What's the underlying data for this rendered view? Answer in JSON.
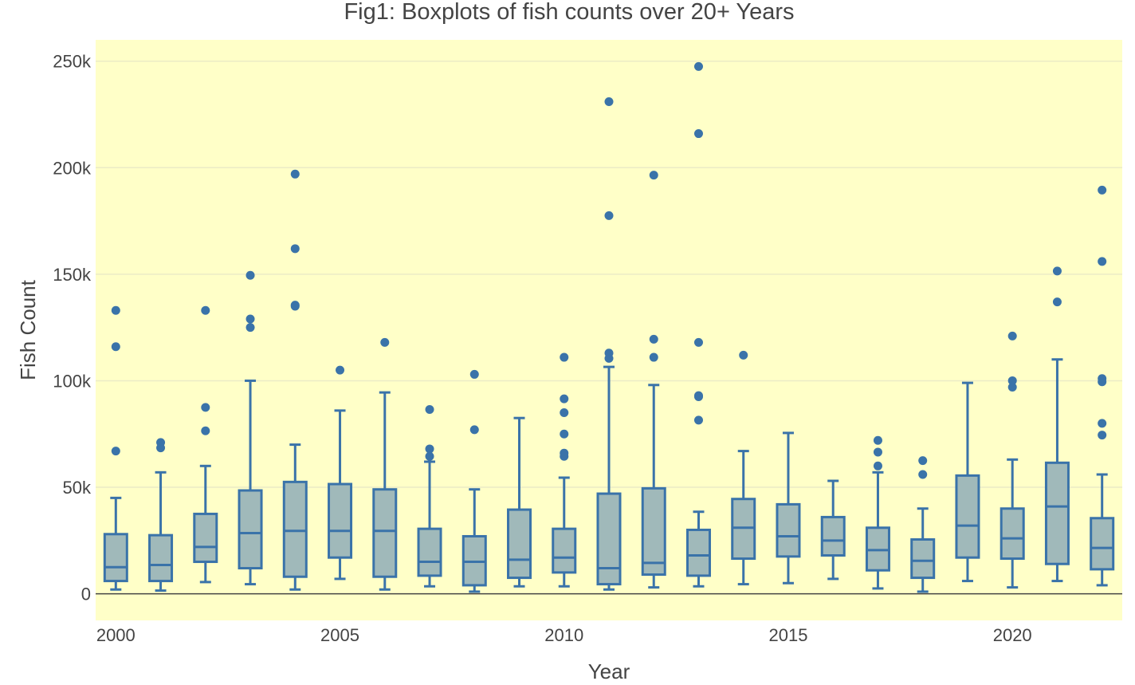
{
  "chart_data": {
    "type": "box",
    "title": "Fig1: Boxplots of fish counts over 20+ Years",
    "xlabel": "Year",
    "ylabel": "Fish Count",
    "xlim": [
      1999.55,
      2022.45
    ],
    "ylim": [
      -12500,
      260000
    ],
    "x_ticks": [
      2000,
      2005,
      2010,
      2015,
      2020
    ],
    "y_ticks": [
      0,
      50000,
      100000,
      150000,
      200000,
      250000
    ],
    "y_tick_labels": [
      "0",
      "50k",
      "100k",
      "150k",
      "200k",
      "250k"
    ],
    "plot_background": "#ffffc8",
    "box_fill": "#a0b9ba",
    "box_line": "#3a73a9",
    "grid": true,
    "boxes": [
      {
        "x": 2000,
        "min": 2000,
        "q1": 6000,
        "median": 12500,
        "q3": 28000,
        "max": 45000,
        "outliers": [
          67000,
          116000,
          133000
        ]
      },
      {
        "x": 2001,
        "min": 1500,
        "q1": 6000,
        "median": 13500,
        "q3": 27500,
        "max": 57000,
        "outliers": [
          68500,
          71000
        ]
      },
      {
        "x": 2002,
        "min": 5500,
        "q1": 15000,
        "median": 22000,
        "q3": 37500,
        "max": 60000,
        "outliers": [
          76500,
          87500,
          133000
        ]
      },
      {
        "x": 2003,
        "min": 4500,
        "q1": 12000,
        "median": 28500,
        "q3": 48500,
        "max": 100000,
        "outliers": [
          125000,
          129000,
          149500
        ]
      },
      {
        "x": 2004,
        "min": 2000,
        "q1": 8000,
        "median": 29500,
        "q3": 52500,
        "max": 70000,
        "outliers": [
          135000,
          135500,
          162000,
          197000
        ]
      },
      {
        "x": 2005,
        "min": 7000,
        "q1": 17000,
        "median": 29500,
        "q3": 51500,
        "max": 86000,
        "outliers": [
          105000
        ]
      },
      {
        "x": 2006,
        "min": 2000,
        "q1": 8000,
        "median": 29500,
        "q3": 49000,
        "max": 94500,
        "outliers": [
          118000
        ]
      },
      {
        "x": 2007,
        "min": 3500,
        "q1": 8500,
        "median": 15000,
        "q3": 30500,
        "max": 62000,
        "outliers": [
          64500,
          68000,
          86500
        ]
      },
      {
        "x": 2008,
        "min": 1000,
        "q1": 4000,
        "median": 15000,
        "q3": 27000,
        "max": 49000,
        "outliers": [
          77000,
          103000
        ]
      },
      {
        "x": 2009,
        "min": 3500,
        "q1": 7500,
        "median": 16000,
        "q3": 39500,
        "max": 82500,
        "outliers": []
      },
      {
        "x": 2010,
        "min": 3500,
        "q1": 10000,
        "median": 17000,
        "q3": 30500,
        "max": 54500,
        "outliers": [
          64500,
          66000,
          75000,
          85000,
          91500,
          111000
        ]
      },
      {
        "x": 2011,
        "min": 2000,
        "q1": 4500,
        "median": 12000,
        "q3": 47000,
        "max": 106500,
        "outliers": [
          110500,
          113000,
          177500,
          231000
        ]
      },
      {
        "x": 2012,
        "min": 3000,
        "q1": 9000,
        "median": 14500,
        "q3": 49500,
        "max": 98000,
        "outliers": [
          111000,
          119500,
          196500
        ]
      },
      {
        "x": 2013,
        "min": 3500,
        "q1": 8500,
        "median": 18000,
        "q3": 30000,
        "max": 38500,
        "outliers": [
          81500,
          92500,
          93000,
          118000,
          216000,
          247500
        ]
      },
      {
        "x": 2014,
        "min": 4500,
        "q1": 16500,
        "median": 31000,
        "q3": 44500,
        "max": 67000,
        "outliers": [
          112000
        ]
      },
      {
        "x": 2015,
        "min": 5000,
        "q1": 17500,
        "median": 27000,
        "q3": 42000,
        "max": 75500,
        "outliers": []
      },
      {
        "x": 2016,
        "min": 7000,
        "q1": 18000,
        "median": 25000,
        "q3": 36000,
        "max": 53000,
        "outliers": []
      },
      {
        "x": 2017,
        "min": 2500,
        "q1": 11000,
        "median": 20500,
        "q3": 31000,
        "max": 57000,
        "outliers": [
          60000,
          66500,
          72000
        ]
      },
      {
        "x": 2018,
        "min": 1000,
        "q1": 7500,
        "median": 15500,
        "q3": 25500,
        "max": 40000,
        "outliers": [
          56000,
          62500
        ]
      },
      {
        "x": 2019,
        "min": 6000,
        "q1": 17000,
        "median": 32000,
        "q3": 55500,
        "max": 99000,
        "outliers": []
      },
      {
        "x": 2020,
        "min": 3000,
        "q1": 16500,
        "median": 26000,
        "q3": 40000,
        "max": 63000,
        "outliers": [
          97000,
          100000,
          121000
        ]
      },
      {
        "x": 2021,
        "min": 6000,
        "q1": 14000,
        "median": 41000,
        "q3": 61500,
        "max": 110000,
        "outliers": [
          137000,
          151500
        ]
      },
      {
        "x": 2022,
        "min": 4000,
        "q1": 11500,
        "median": 21500,
        "q3": 35500,
        "max": 56000,
        "outliers": [
          74500,
          80000,
          99500,
          101000,
          156000,
          189500
        ]
      }
    ]
  }
}
